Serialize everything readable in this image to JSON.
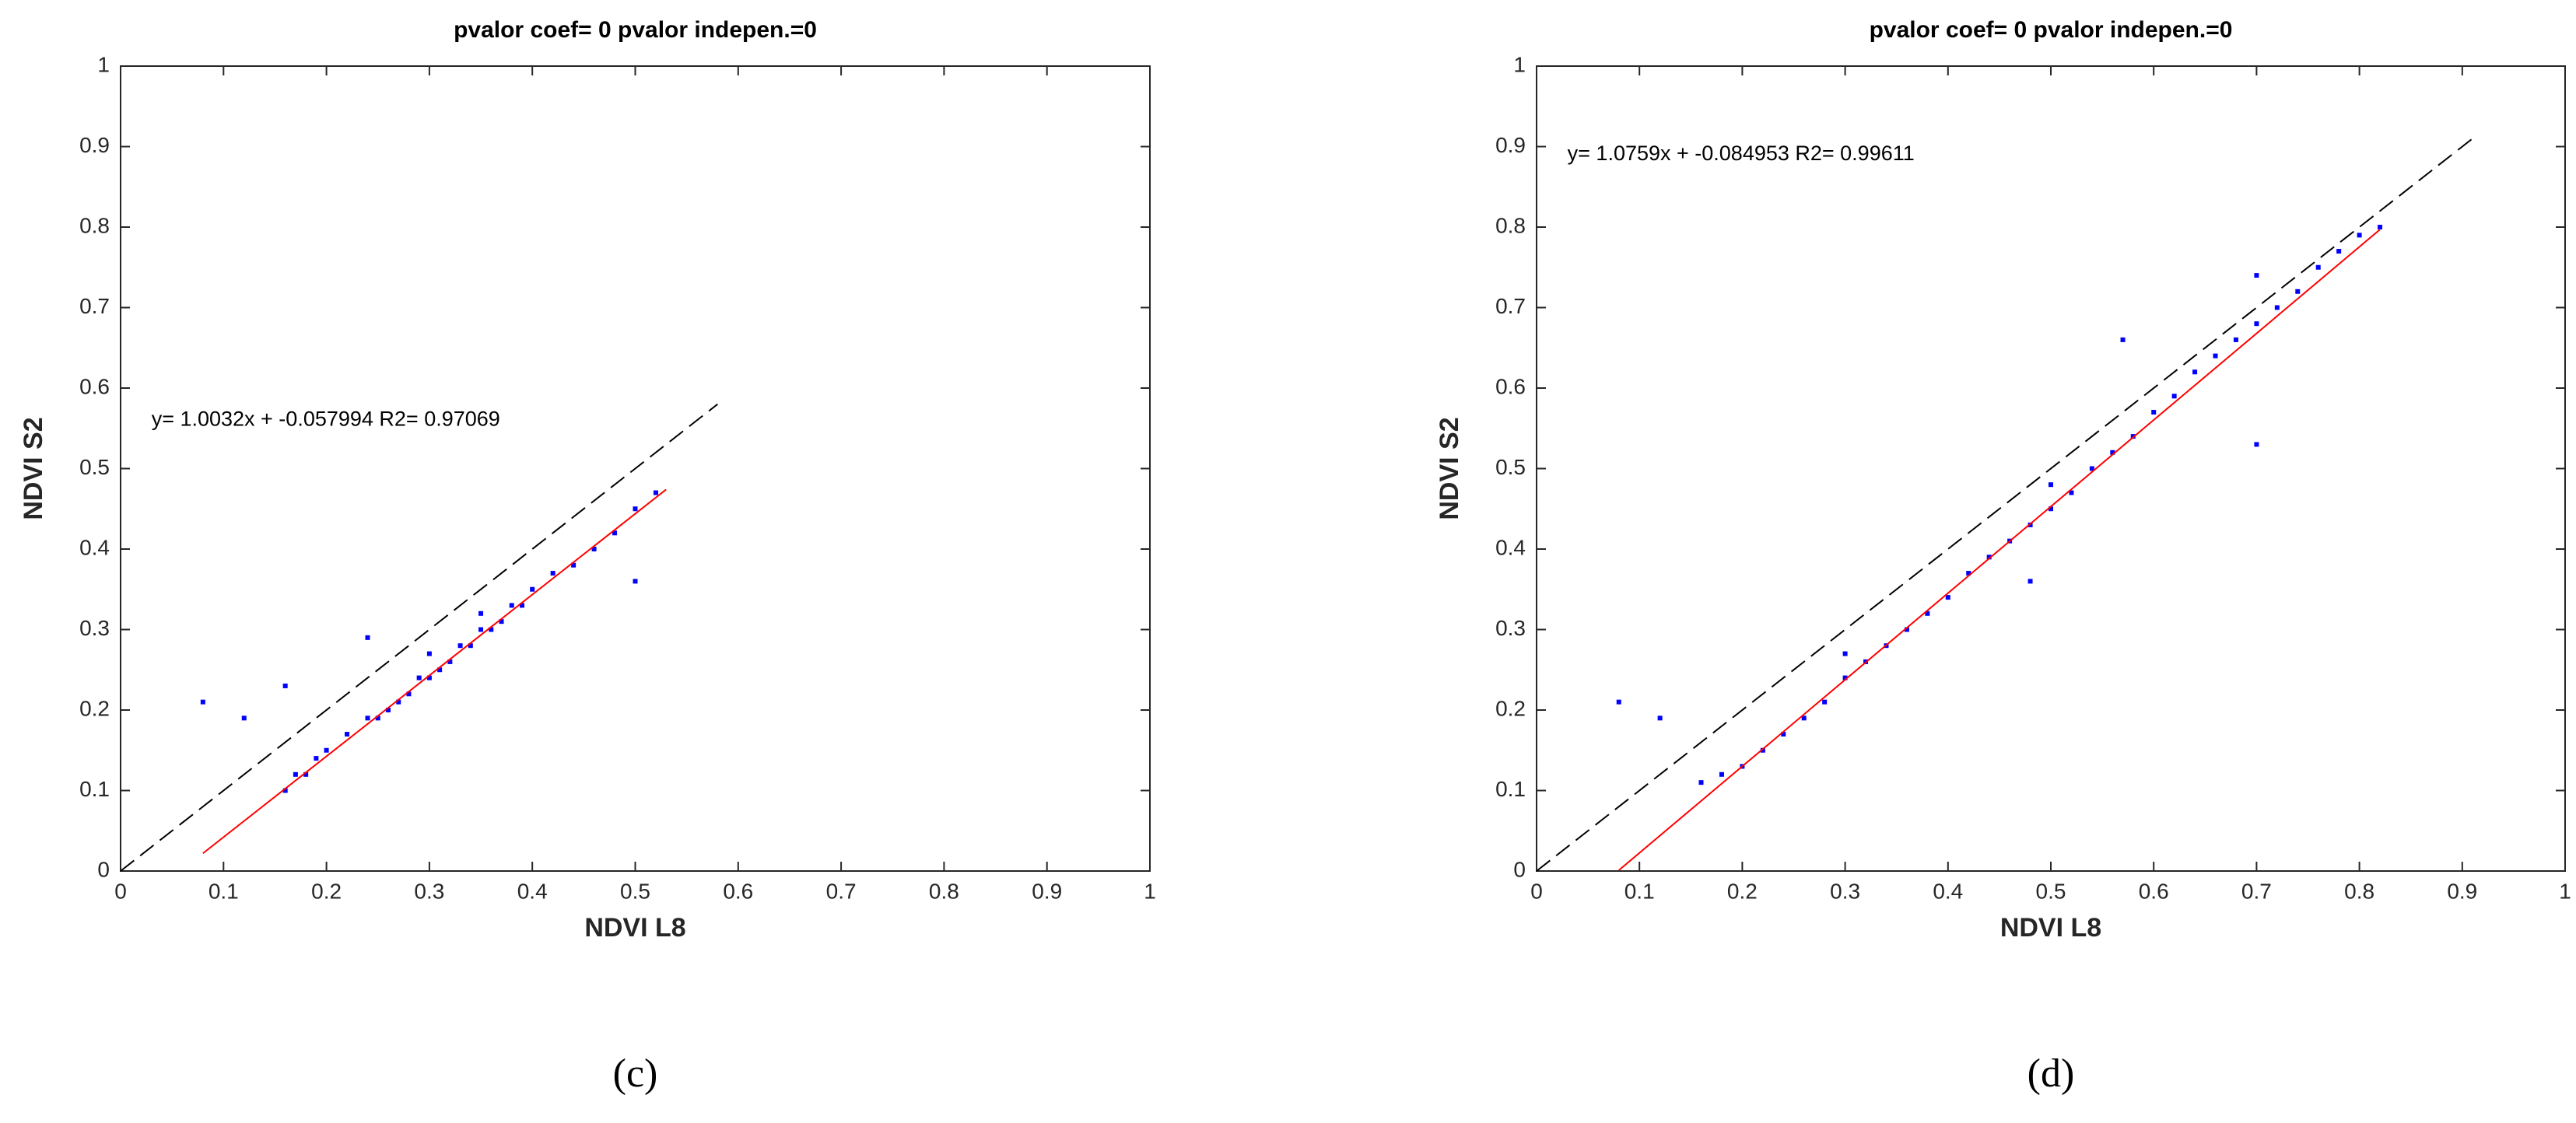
{
  "chart_data": [
    {
      "type": "scatter",
      "title": "pvalor coef= 0  pvalor indepen.=0",
      "xlabel": "NDVI L8",
      "ylabel": "NDVI S2",
      "annotation": "y= 1.0032x + -0.057994  R2= 0.97069",
      "panel_label": "(c)",
      "xlim": [
        0,
        1
      ],
      "ylim": [
        0,
        1
      ],
      "xticks": [
        0,
        0.1,
        0.2,
        0.3,
        0.4,
        0.5,
        0.6,
        0.7,
        0.8,
        0.9,
        1
      ],
      "yticks": [
        0,
        0.1,
        0.2,
        0.3,
        0.4,
        0.5,
        0.6,
        0.7,
        0.8,
        0.9,
        1
      ],
      "series": [
        {
          "style": "points",
          "color": "#0000ff",
          "x": [
            0.16,
            0.17,
            0.18,
            0.19,
            0.2,
            0.22,
            0.24,
            0.25,
            0.26,
            0.27,
            0.28,
            0.29,
            0.3,
            0.31,
            0.32,
            0.33,
            0.34,
            0.35,
            0.36,
            0.37,
            0.38,
            0.39,
            0.4,
            0.42,
            0.44,
            0.46,
            0.48,
            0.5,
            0.52,
            0.08,
            0.12,
            0.16,
            0.24,
            0.5,
            0.3,
            0.35
          ],
          "y": [
            0.1,
            0.12,
            0.12,
            0.14,
            0.15,
            0.17,
            0.19,
            0.19,
            0.2,
            0.21,
            0.22,
            0.24,
            0.24,
            0.25,
            0.26,
            0.28,
            0.28,
            0.3,
            0.3,
            0.31,
            0.33,
            0.33,
            0.35,
            0.37,
            0.38,
            0.4,
            0.42,
            0.45,
            0.47,
            0.21,
            0.19,
            0.23,
            0.29,
            0.36,
            0.27,
            0.32
          ]
        },
        {
          "style": "line",
          "color": "#ff0000",
          "x": [
            0.08,
            0.53
          ],
          "y": [
            0.022,
            0.474
          ]
        },
        {
          "style": "dashed",
          "color": "#000000",
          "x": [
            0,
            0.58
          ],
          "y": [
            0,
            0.58
          ]
        }
      ]
    },
    {
      "type": "scatter",
      "title": "pvalor coef= 0  pvalor indepen.=0",
      "xlabel": "NDVI L8",
      "ylabel": "NDVI S2",
      "annotation": "y= 1.0759x + -0.084953  R2= 0.99611",
      "panel_label": "(d)",
      "xlim": [
        0,
        1
      ],
      "ylim": [
        0,
        1
      ],
      "xticks": [
        0,
        0.1,
        0.2,
        0.3,
        0.4,
        0.5,
        0.6,
        0.7,
        0.8,
        0.9,
        1
      ],
      "yticks": [
        0,
        0.1,
        0.2,
        0.3,
        0.4,
        0.5,
        0.6,
        0.7,
        0.8,
        0.9,
        1
      ],
      "series": [
        {
          "style": "points",
          "color": "#0000ff",
          "x": [
            0.16,
            0.18,
            0.2,
            0.22,
            0.24,
            0.26,
            0.28,
            0.3,
            0.32,
            0.34,
            0.36,
            0.38,
            0.4,
            0.42,
            0.44,
            0.46,
            0.48,
            0.5,
            0.52,
            0.54,
            0.56,
            0.58,
            0.6,
            0.62,
            0.64,
            0.66,
            0.68,
            0.7,
            0.72,
            0.74,
            0.76,
            0.78,
            0.8,
            0.82,
            0.08,
            0.12,
            0.57,
            0.7,
            0.48,
            0.7,
            0.3,
            0.5
          ],
          "y": [
            0.11,
            0.12,
            0.13,
            0.15,
            0.17,
            0.19,
            0.21,
            0.24,
            0.26,
            0.28,
            0.3,
            0.32,
            0.34,
            0.37,
            0.39,
            0.41,
            0.43,
            0.45,
            0.47,
            0.5,
            0.52,
            0.54,
            0.57,
            0.59,
            0.62,
            0.64,
            0.66,
            0.68,
            0.7,
            0.72,
            0.75,
            0.77,
            0.79,
            0.8,
            0.21,
            0.19,
            0.66,
            0.53,
            0.36,
            0.74,
            0.27,
            0.48
          ]
        },
        {
          "style": "line",
          "color": "#ff0000",
          "x": [
            0.08,
            0.82
          ],
          "y": [
            0.001,
            0.797
          ]
        },
        {
          "style": "dashed",
          "color": "#000000",
          "x": [
            0,
            0.91
          ],
          "y": [
            0,
            0.91
          ]
        }
      ]
    }
  ]
}
